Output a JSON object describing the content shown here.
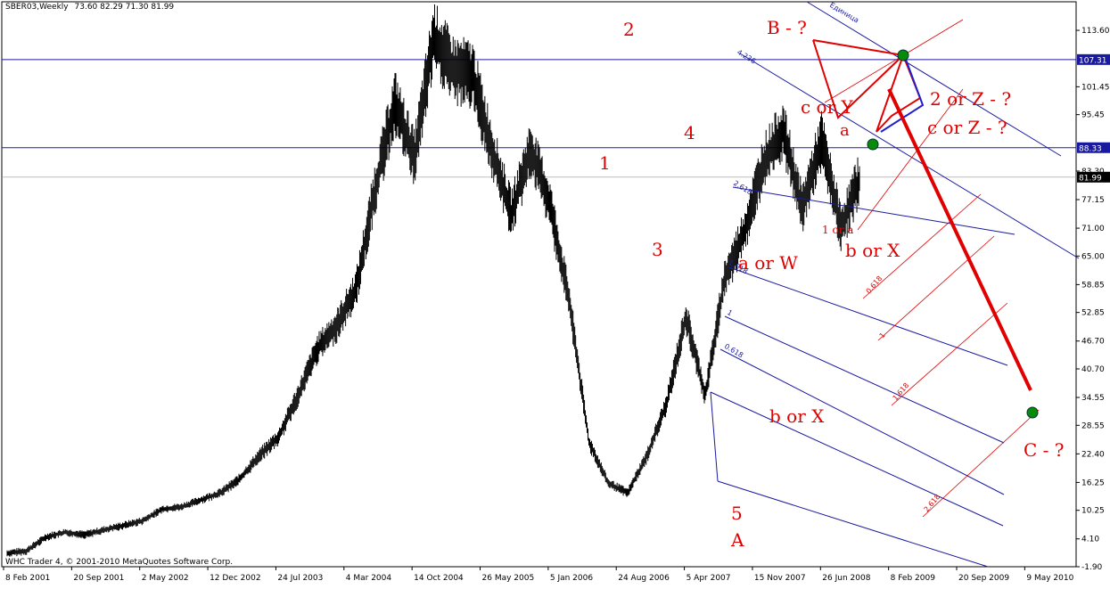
{
  "header": {
    "symbol": "SBER03,Weekly",
    "ohlc": "73.60 82.29 71.30 81.99"
  },
  "footer": {
    "copyright": "WHC Trader 4, © 2001-2010 MetaQuotes Software Corp."
  },
  "colors": {
    "price": "#000000",
    "fork_blue": "#1a1aa0",
    "fork_red": "#e00000",
    "pivot": "#0a8a0a"
  },
  "chart_data": {
    "type": "line",
    "title": "",
    "ylim": [
      -1.9,
      119.75
    ],
    "x_ticks": [
      "8 Feb 2001",
      "20 Sep 2001",
      "2 May 2002",
      "12 Dec 2002",
      "24 Jul 2003",
      "4 Mar 2004",
      "14 Oct 2004",
      "26 May 2005",
      "5 Jan 2006",
      "24 Aug 2006",
      "5 Apr 2007",
      "15 Nov 2007",
      "26 Jun 2008",
      "8 Feb 2009",
      "20 Sep 2009",
      "9 May 2010"
    ],
    "y_ticks": [
      "113.60",
      "107.31",
      "101.45",
      "95.45",
      "88.33",
      "83.30",
      "81.99",
      "77.15",
      "71.00",
      "65.00",
      "58.85",
      "52.85",
      "46.70",
      "40.70",
      "34.55",
      "28.55",
      "22.40",
      "16.25",
      "10.25",
      "4.10",
      "-1.90"
    ],
    "y_tick_values": [
      113.6,
      107.31,
      101.45,
      95.45,
      88.33,
      83.3,
      81.99,
      77.15,
      71.0,
      65.0,
      58.85,
      52.85,
      46.7,
      40.7,
      34.55,
      28.55,
      22.4,
      16.25,
      10.25,
      4.1,
      -1.9
    ],
    "h_lines": [
      {
        "label": "107.31",
        "value": 107.31,
        "highlight": true
      },
      {
        "label": "88.33",
        "value": 88.33,
        "highlight": true
      },
      {
        "label": "81.99",
        "value": 81.99,
        "current": true
      }
    ],
    "series": [
      {
        "x": [
          0,
          1,
          2,
          3,
          4,
          5,
          6,
          7,
          8,
          9,
          10,
          11,
          12,
          13,
          14,
          15,
          16,
          17,
          18,
          19,
          20,
          21,
          22,
          23,
          24,
          25,
          26,
          27,
          28,
          29,
          30,
          31,
          32,
          33,
          34,
          35,
          36,
          37,
          38,
          39,
          40,
          41,
          42,
          43,
          44,
          45,
          46,
          47,
          48,
          49,
          50
        ],
        "x_dates": [
          "8 Feb 2001",
          "",
          "",
          "",
          "",
          "",
          "",
          "",
          "",
          "",
          "",
          "",
          "",
          "",
          "",
          "",
          "",
          "",
          "",
          "",
          "",
          "",
          "",
          "",
          "",
          "",
          "",
          "",
          "",
          "",
          "",
          "",
          "",
          "",
          "",
          "",
          "",
          "",
          "",
          "",
          "",
          "",
          "",
          "",
          "",
          "",
          "",
          "",
          "",
          "",
          ""
        ],
        "values": [
          1.0,
          1.5,
          4.5,
          5.5,
          5.0,
          6.0,
          7.0,
          8.0,
          10.5,
          11.0,
          12.5,
          14.0,
          17.0,
          22.0,
          26.0,
          35.0,
          45.0,
          50.0,
          58.0,
          80.0,
          98.0,
          86.0,
          112.0,
          105.0,
          104.0,
          88.0,
          74.0,
          88.0,
          76.0,
          55.0,
          25.0,
          16.0,
          14.0,
          22.0,
          33.0,
          52.0,
          35.0,
          60.0,
          70.0,
          85.0,
          92.0,
          75.0,
          90.0,
          71.0,
          82.0,
          null,
          null,
          null,
          null,
          null,
          null
        ]
      }
    ],
    "wave_labels": [
      "1",
      "2",
      "3",
      "4",
      "5",
      "A",
      "a or W",
      "b or X",
      "c or Y",
      "a",
      "1 or a",
      "b or X",
      "B - ?",
      "2 or Z - ?",
      "c or Z - ?",
      "C - ?"
    ],
    "fib_labels_blue": [
      "4.236",
      "2.618",
      "1.618",
      "1",
      "0.618",
      "Единица"
    ],
    "fib_labels_red": [
      "0.618",
      "1",
      "1.618",
      "2.618"
    ]
  }
}
